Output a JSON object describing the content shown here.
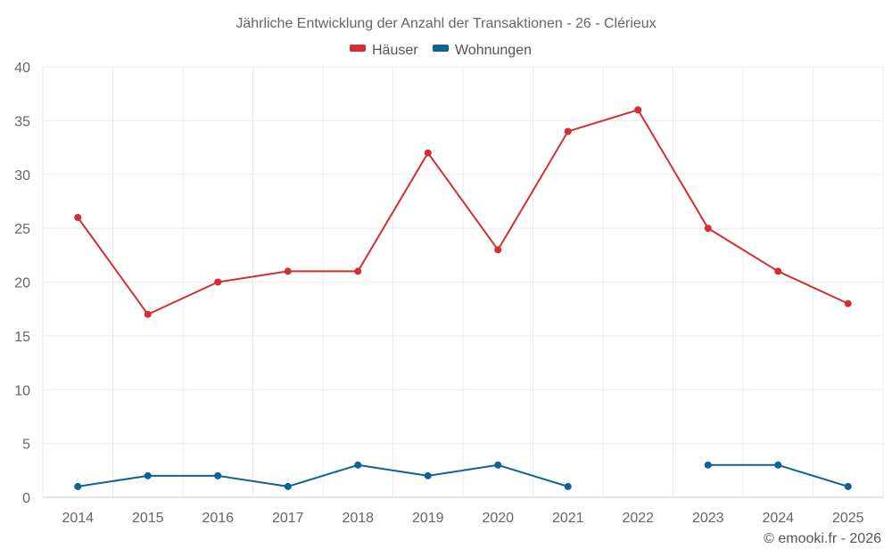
{
  "chart_data": {
    "type": "line",
    "title": "Jährliche Entwicklung der Anzahl der Transaktionen - 26 - Clérieux",
    "categories": [
      "2014",
      "2015",
      "2016",
      "2017",
      "2018",
      "2019",
      "2020",
      "2021",
      "2022",
      "2023",
      "2024",
      "2025"
    ],
    "series": [
      {
        "name": "Häuser",
        "color": "#d32f2f",
        "values": [
          26,
          17,
          20,
          21,
          21,
          32,
          23,
          34,
          36,
          25,
          21,
          18
        ]
      },
      {
        "name": "Wohnungen",
        "color": "#0d6393",
        "values": [
          1,
          2,
          2,
          1,
          3,
          2,
          3,
          1,
          null,
          3,
          3,
          1
        ]
      }
    ],
    "ylim": [
      0,
      40
    ],
    "yticks": [
      "0",
      "5",
      "10",
      "15",
      "20",
      "25",
      "30",
      "35",
      "40"
    ],
    "xlabel": "",
    "ylabel": "",
    "grid": true,
    "legend": "top-center"
  },
  "credit": "© emooki.fr - 2026"
}
